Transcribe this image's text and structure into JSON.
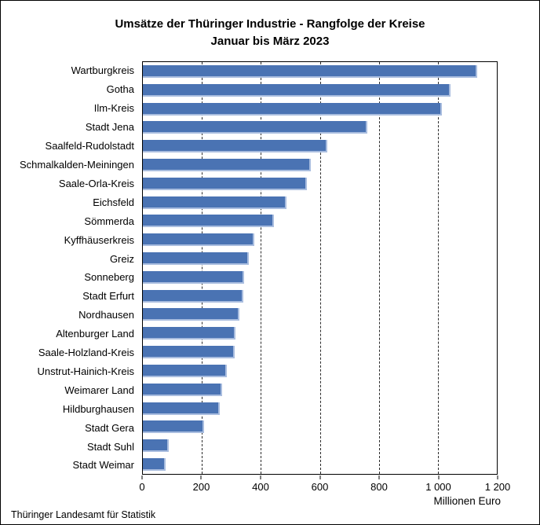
{
  "title": {
    "line1": "Umsätze der Thüringer Industrie - Rangfolge der Kreise",
    "line2": "Januar bis März 2023"
  },
  "footer": {
    "source": "Thüringer Landesamt für Statistik"
  },
  "chart_data": {
    "type": "bar",
    "orientation": "horizontal",
    "title": "Umsätze der Thüringer Industrie - Rangfolge der Kreise Januar bis März 2023",
    "xlabel": "Millionen Euro",
    "ylabel": "",
    "xlim": [
      0,
      1200
    ],
    "grid": "vertical-dashed",
    "legend": "none",
    "gridline_values": [
      200,
      400,
      600,
      800,
      1000
    ],
    "x_ticks": [
      {
        "value": 0,
        "label": "0"
      },
      {
        "value": 200,
        "label": "200"
      },
      {
        "value": 400,
        "label": "400"
      },
      {
        "value": 600,
        "label": "600"
      },
      {
        "value": 800,
        "label": "800"
      },
      {
        "value": 1000,
        "label": "1 000"
      },
      {
        "value": 1200,
        "label": "1 200"
      }
    ],
    "bar_color": "#4a73b3",
    "bar_edge_color": "#a9bddf",
    "categories": [
      "Wartburgkreis",
      "Gotha",
      "Ilm-Kreis",
      "Stadt Jena",
      "Saalfeld-Rudolstadt",
      "Schmalkalden-Meiningen",
      "Saale-Orla-Kreis",
      "Eichsfeld",
      "Sömmerda",
      "Kyffhäuserkreis",
      "Greiz",
      "Sonneberg",
      "Stadt Erfurt",
      "Nordhausen",
      "Altenburger Land",
      "Saale-Holzland-Kreis",
      "Unstrut-Hainich-Kreis",
      "Weimarer Land",
      "Hildburghausen",
      "Stadt Gera",
      "Stadt Suhl",
      "Stadt Weimar"
    ],
    "values": [
      1134,
      1042,
      1013,
      761,
      624,
      569,
      555,
      486,
      445,
      377,
      360,
      342,
      340,
      328,
      315,
      311,
      286,
      268,
      261,
      208,
      88,
      78
    ]
  }
}
